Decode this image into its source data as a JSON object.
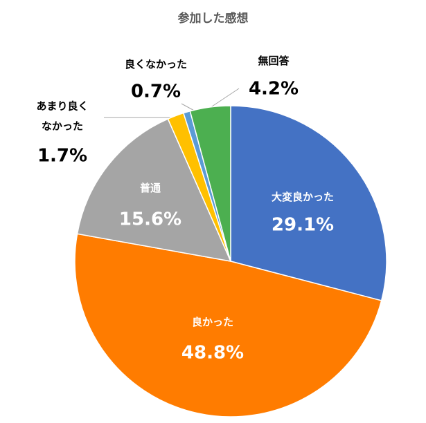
{
  "chart_data": {
    "type": "pie",
    "title": "参加した感想",
    "categories": [
      "大変良かった",
      "良かった",
      "普通",
      "あまり良く\nなかった",
      "良くなかった",
      "無回答"
    ],
    "values": [
      29.1,
      48.8,
      15.6,
      1.7,
      0.7,
      4.2
    ],
    "value_labels": [
      "29.1%",
      "48.8%",
      "15.6%",
      "1.7%",
      "0.7%",
      "4.2%"
    ],
    "colors": [
      "#4472c4",
      "#ff7c00",
      "#a5a5a5",
      "#ffc000",
      "#5b9bd5",
      "#4caf50"
    ]
  }
}
